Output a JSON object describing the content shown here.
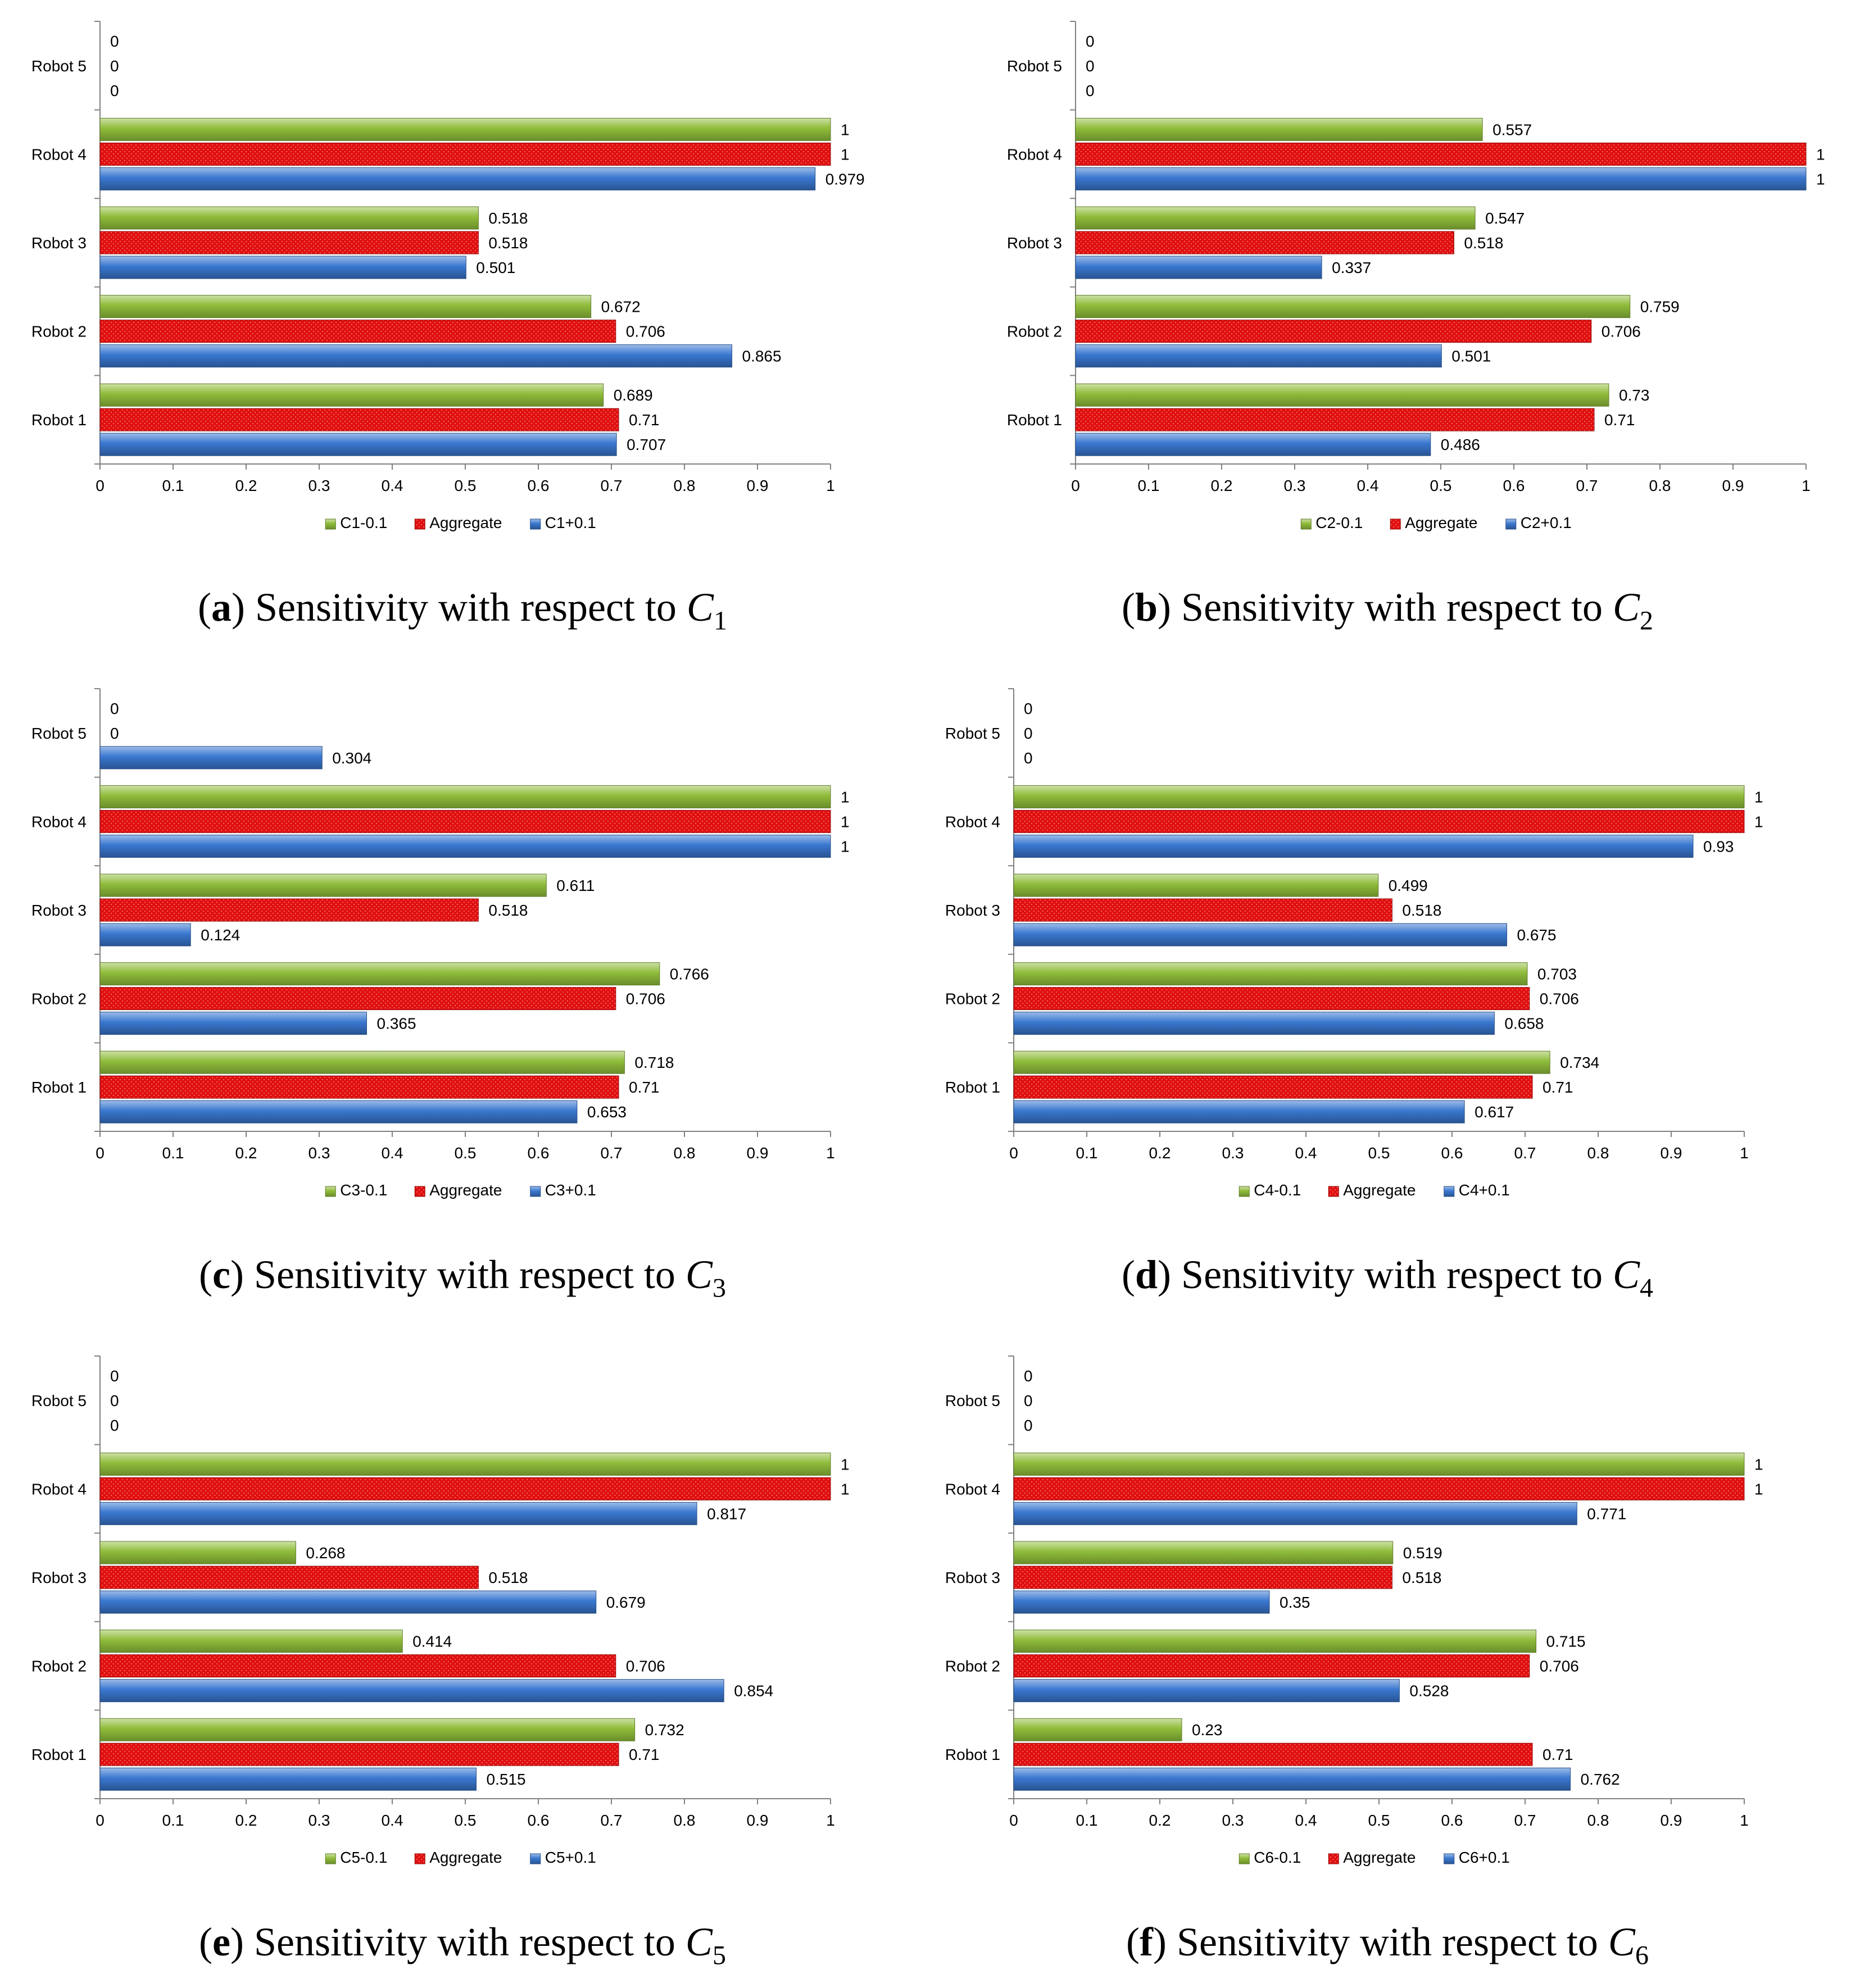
{
  "colors": {
    "green": "#8fbc3a",
    "red": "#e01010",
    "blue": "#3a78d0"
  },
  "chart_data": [
    {
      "type": "bar",
      "orientation": "horizontal",
      "caption": {
        "letter": "a",
        "text": "Sensitivity with respect to ",
        "var": "C",
        "sub": "1"
      },
      "categories": [
        "Robot 1",
        "Robot 2",
        "Robot 3",
        "Robot 4",
        "Robot 5"
      ],
      "xlim": [
        0,
        1
      ],
      "xticks": [
        "0",
        "0.1",
        "0.2",
        "0.3",
        "0.4",
        "0.5",
        "0.6",
        "0.7",
        "0.8",
        "0.9",
        "1"
      ],
      "series": [
        {
          "name": "C1-0.1",
          "values": [
            0.689,
            0.672,
            0.518,
            1,
            0
          ],
          "labels": [
            "0.689",
            "0.672",
            "0.518",
            "1",
            "0"
          ]
        },
        {
          "name": "Aggregate",
          "values": [
            0.71,
            0.706,
            0.518,
            1,
            0
          ],
          "labels": [
            "0.71",
            "0.706",
            "0.518",
            "1",
            "0"
          ]
        },
        {
          "name": "C1+0.1",
          "values": [
            0.707,
            0.865,
            0.501,
            0.979,
            0
          ],
          "labels": [
            "0.707",
            "0.865",
            "0.501",
            "0.979",
            "0"
          ]
        }
      ]
    },
    {
      "type": "bar",
      "orientation": "horizontal",
      "caption": {
        "letter": "b",
        "text": "Sensitivity with respect to ",
        "var": "C",
        "sub": "2"
      },
      "categories": [
        "Robot 1",
        "Robot 2",
        "Robot 3",
        "Robot 4",
        "Robot 5"
      ],
      "xlim": [
        0,
        1
      ],
      "xticks": [
        "0",
        "0.1",
        "0.2",
        "0.3",
        "0.4",
        "0.5",
        "0.6",
        "0.7",
        "0.8",
        "0.9",
        "1"
      ],
      "series": [
        {
          "name": "C2-0.1",
          "values": [
            0.73,
            0.759,
            0.547,
            0.557,
            0
          ],
          "labels": [
            "0.73",
            "0.759",
            "0.547",
            "0.557",
            "0"
          ]
        },
        {
          "name": "Aggregate",
          "values": [
            0.71,
            0.706,
            0.518,
            1,
            0
          ],
          "labels": [
            "0.71",
            "0.706",
            "0.518",
            "1",
            "0"
          ]
        },
        {
          "name": "C2+0.1",
          "values": [
            0.486,
            0.501,
            0.337,
            1,
            0
          ],
          "labels": [
            "0.486",
            "0.501",
            "0.337",
            "1",
            "0"
          ]
        }
      ]
    },
    {
      "type": "bar",
      "orientation": "horizontal",
      "caption": {
        "letter": "c",
        "text": "Sensitivity with respect to ",
        "var": "C",
        "sub": "3"
      },
      "categories": [
        "Robot 1",
        "Robot 2",
        "Robot 3",
        "Robot 4",
        "Robot 5"
      ],
      "xlim": [
        0,
        1
      ],
      "xticks": [
        "0",
        "0.1",
        "0.2",
        "0.3",
        "0.4",
        "0.5",
        "0.6",
        "0.7",
        "0.8",
        "0.9",
        "1"
      ],
      "series": [
        {
          "name": "C3-0.1",
          "values": [
            0.718,
            0.766,
            0.611,
            1,
            0
          ],
          "labels": [
            "0.718",
            "0.766",
            "0.611",
            "1",
            "0"
          ]
        },
        {
          "name": "Aggregate",
          "values": [
            0.71,
            0.706,
            0.518,
            1,
            0
          ],
          "labels": [
            "0.71",
            "0.706",
            "0.518",
            "1",
            "0"
          ]
        },
        {
          "name": "C3+0.1",
          "values": [
            0.653,
            0.365,
            0.124,
            1,
            0.304
          ],
          "labels": [
            "0.653",
            "0.365",
            "0.124",
            "1",
            "0.304"
          ]
        }
      ]
    },
    {
      "type": "bar",
      "orientation": "horizontal",
      "caption": {
        "letter": "d",
        "text": "Sensitivity with respect to ",
        "var": "C",
        "sub": "4"
      },
      "categories": [
        "Robot 1",
        "Robot 2",
        "Robot 3",
        "Robot 4",
        "Robot 5"
      ],
      "xlim": [
        0,
        1
      ],
      "xticks": [
        "0",
        "0.1",
        "0.2",
        "0.3",
        "0.4",
        "0.5",
        "0.6",
        "0.7",
        "0.8",
        "0.9",
        "1"
      ],
      "series": [
        {
          "name": "C4-0.1",
          "values": [
            0.734,
            0.703,
            0.499,
            1,
            0
          ],
          "labels": [
            "0.734",
            "0.703",
            "0.499",
            "1",
            "0"
          ]
        },
        {
          "name": "Aggregate",
          "values": [
            0.71,
            0.706,
            0.518,
            1,
            0
          ],
          "labels": [
            "0.71",
            "0.706",
            "0.518",
            "1",
            "0"
          ]
        },
        {
          "name": "C4+0.1",
          "values": [
            0.617,
            0.658,
            0.675,
            0.93,
            0
          ],
          "labels": [
            "0.617",
            "0.658",
            "0.675",
            "0.93",
            "0"
          ]
        }
      ]
    },
    {
      "type": "bar",
      "orientation": "horizontal",
      "caption": {
        "letter": "e",
        "text": "Sensitivity with respect to ",
        "var": "C",
        "sub": "5"
      },
      "categories": [
        "Robot 1",
        "Robot 2",
        "Robot 3",
        "Robot 4",
        "Robot 5"
      ],
      "xlim": [
        0,
        1
      ],
      "xticks": [
        "0",
        "0.1",
        "0.2",
        "0.3",
        "0.4",
        "0.5",
        "0.6",
        "0.7",
        "0.8",
        "0.9",
        "1"
      ],
      "series": [
        {
          "name": "C5-0.1",
          "values": [
            0.732,
            0.414,
            0.268,
            1,
            0
          ],
          "labels": [
            "0.732",
            "0.414",
            "0.268",
            "1",
            "0"
          ]
        },
        {
          "name": "Aggregate",
          "values": [
            0.71,
            0.706,
            0.518,
            1,
            0
          ],
          "labels": [
            "0.71",
            "0.706",
            "0.518",
            "1",
            "0"
          ]
        },
        {
          "name": "C5+0.1",
          "values": [
            0.515,
            0.854,
            0.679,
            0.817,
            0
          ],
          "labels": [
            "0.515",
            "0.854",
            "0.679",
            "0.817",
            "0"
          ]
        }
      ]
    },
    {
      "type": "bar",
      "orientation": "horizontal",
      "caption": {
        "letter": "f",
        "text": "Sensitivity with respect to ",
        "var": "C",
        "sub": "6"
      },
      "categories": [
        "Robot 1",
        "Robot 2",
        "Robot 3",
        "Robot 4",
        "Robot 5"
      ],
      "xlim": [
        0,
        1
      ],
      "xticks": [
        "0",
        "0.1",
        "0.2",
        "0.3",
        "0.4",
        "0.5",
        "0.6",
        "0.7",
        "0.8",
        "0.9",
        "1"
      ],
      "series": [
        {
          "name": "C6-0.1",
          "values": [
            0.23,
            0.715,
            0.519,
            1,
            0
          ],
          "labels": [
            "0.23",
            "0.715",
            "0.519",
            "1",
            "0"
          ]
        },
        {
          "name": "Aggregate",
          "values": [
            0.71,
            0.706,
            0.518,
            1,
            0
          ],
          "labels": [
            "0.71",
            "0.706",
            "0.518",
            "1",
            "0"
          ]
        },
        {
          "name": "C6+0.1",
          "values": [
            0.762,
            0.528,
            0.35,
            0.771,
            0
          ],
          "labels": [
            "0.762",
            "0.528",
            "0.35",
            "0.771",
            "0"
          ]
        }
      ]
    }
  ]
}
